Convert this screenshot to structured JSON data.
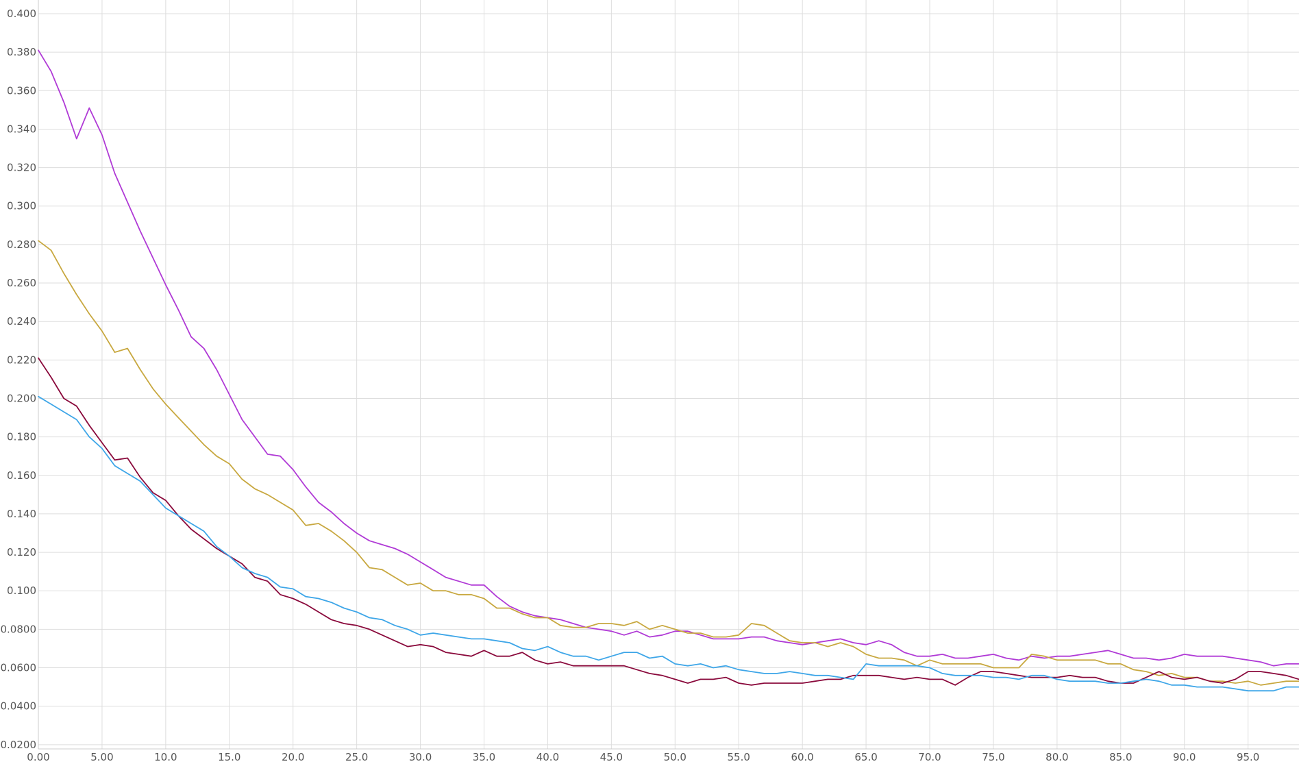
{
  "chart_data": {
    "type": "line",
    "title": "",
    "xlabel": "",
    "ylabel": "",
    "xlim": [
      0,
      99
    ],
    "ylim": [
      0.0178,
      0.4
    ],
    "grid": true,
    "legend": "none",
    "x_ticks": [
      0,
      5,
      10,
      15,
      20,
      25,
      30,
      35,
      40,
      45,
      50,
      55,
      60,
      65,
      70,
      75,
      80,
      85,
      90,
      95
    ],
    "x_tick_labels": [
      "0.00",
      "5.00",
      "10.0",
      "15.0",
      "20.0",
      "25.0",
      "30.0",
      "35.0",
      "40.0",
      "45.0",
      "50.0",
      "55.0",
      "60.0",
      "65.0",
      "70.0",
      "75.0",
      "80.0",
      "85.0",
      "90.0",
      "95.0"
    ],
    "y_ticks": [
      0.02,
      0.04,
      0.06,
      0.08,
      0.1,
      0.12,
      0.14,
      0.16,
      0.18,
      0.2,
      0.22,
      0.24,
      0.26,
      0.28,
      0.3,
      0.32,
      0.34,
      0.36,
      0.38,
      0.4
    ],
    "y_tick_labels": [
      "0.0200",
      "0.0400",
      "0.0600",
      "0.0800",
      "0.100",
      "0.120",
      "0.140",
      "0.160",
      "0.180",
      "0.200",
      "0.220",
      "0.240",
      "0.260",
      "0.280",
      "0.300",
      "0.320",
      "0.340",
      "0.360",
      "0.380",
      "0.400"
    ],
    "x": [
      0,
      1,
      2,
      3,
      4,
      5,
      6,
      7,
      8,
      9,
      10,
      11,
      12,
      13,
      14,
      15,
      16,
      17,
      18,
      19,
      20,
      21,
      22,
      23,
      24,
      25,
      26,
      27,
      28,
      29,
      30,
      31,
      32,
      33,
      34,
      35,
      36,
      37,
      38,
      39,
      40,
      41,
      42,
      43,
      44,
      45,
      46,
      47,
      48,
      49,
      50,
      51,
      52,
      53,
      54,
      55,
      56,
      57,
      58,
      59,
      60,
      61,
      62,
      63,
      64,
      65,
      66,
      67,
      68,
      69,
      70,
      71,
      72,
      73,
      74,
      75,
      76,
      77,
      78,
      79,
      80,
      81,
      82,
      83,
      84,
      85,
      86,
      87,
      88,
      89,
      90,
      91,
      92,
      93,
      94,
      95,
      96,
      97,
      98,
      99
    ],
    "series": [
      {
        "color": "#b03ad6",
        "values": [
          0.381,
          0.37,
          0.354,
          0.335,
          0.351,
          0.337,
          0.317,
          0.302,
          0.287,
          0.273,
          0.259,
          0.246,
          0.232,
          0.226,
          0.215,
          0.202,
          0.189,
          0.18,
          0.171,
          0.17,
          0.163,
          0.154,
          0.146,
          0.141,
          0.135,
          0.13,
          0.126,
          0.124,
          0.122,
          0.119,
          0.115,
          0.111,
          0.107,
          0.105,
          0.103,
          0.103,
          0.097,
          0.092,
          0.089,
          0.087,
          0.086,
          0.085,
          0.083,
          0.081,
          0.08,
          0.079,
          0.077,
          0.079,
          0.076,
          0.077,
          0.079,
          0.079,
          0.077,
          0.075,
          0.075,
          0.075,
          0.076,
          0.076,
          0.074,
          0.073,
          0.072,
          0.073,
          0.074,
          0.075,
          0.073,
          0.072,
          0.074,
          0.072,
          0.068,
          0.066,
          0.066,
          0.067,
          0.065,
          0.065,
          0.066,
          0.067,
          0.065,
          0.064,
          0.066,
          0.065,
          0.066,
          0.066,
          0.067,
          0.068,
          0.069,
          0.067,
          0.065,
          0.065,
          0.064,
          0.065,
          0.067,
          0.066,
          0.066,
          0.066,
          0.065,
          0.064,
          0.063,
          0.061,
          0.062,
          0.062
        ]
      },
      {
        "color": "#c8a840",
        "values": [
          0.282,
          0.277,
          0.265,
          0.254,
          0.244,
          0.235,
          0.224,
          0.226,
          0.215,
          0.205,
          0.197,
          0.19,
          0.183,
          0.176,
          0.17,
          0.166,
          0.158,
          0.153,
          0.15,
          0.146,
          0.142,
          0.134,
          0.135,
          0.131,
          0.126,
          0.12,
          0.112,
          0.111,
          0.107,
          0.103,
          0.104,
          0.1,
          0.1,
          0.098,
          0.098,
          0.096,
          0.091,
          0.091,
          0.088,
          0.086,
          0.086,
          0.082,
          0.081,
          0.081,
          0.083,
          0.083,
          0.082,
          0.084,
          0.08,
          0.082,
          0.08,
          0.078,
          0.078,
          0.076,
          0.076,
          0.077,
          0.083,
          0.082,
          0.078,
          0.074,
          0.073,
          0.073,
          0.071,
          0.073,
          0.071,
          0.067,
          0.065,
          0.065,
          0.064,
          0.061,
          0.064,
          0.062,
          0.062,
          0.062,
          0.062,
          0.06,
          0.06,
          0.06,
          0.067,
          0.066,
          0.064,
          0.064,
          0.064,
          0.064,
          0.062,
          0.062,
          0.059,
          0.058,
          0.056,
          0.057,
          0.055,
          0.055,
          0.053,
          0.053,
          0.052,
          0.053,
          0.051,
          0.052,
          0.053,
          0.053
        ]
      },
      {
        "color": "#8a0a3c",
        "values": [
          0.221,
          0.211,
          0.2,
          0.196,
          0.186,
          0.177,
          0.168,
          0.169,
          0.159,
          0.151,
          0.147,
          0.139,
          0.132,
          0.127,
          0.122,
          0.118,
          0.114,
          0.107,
          0.105,
          0.098,
          0.096,
          0.093,
          0.089,
          0.085,
          0.083,
          0.082,
          0.08,
          0.077,
          0.074,
          0.071,
          0.072,
          0.071,
          0.068,
          0.067,
          0.066,
          0.069,
          0.066,
          0.066,
          0.068,
          0.064,
          0.062,
          0.063,
          0.061,
          0.061,
          0.061,
          0.061,
          0.061,
          0.059,
          0.057,
          0.056,
          0.054,
          0.052,
          0.054,
          0.054,
          0.055,
          0.052,
          0.051,
          0.052,
          0.052,
          0.052,
          0.052,
          0.053,
          0.054,
          0.054,
          0.056,
          0.056,
          0.056,
          0.055,
          0.054,
          0.055,
          0.054,
          0.054,
          0.051,
          0.055,
          0.058,
          0.058,
          0.057,
          0.056,
          0.055,
          0.055,
          0.055,
          0.056,
          0.055,
          0.055,
          0.053,
          0.052,
          0.052,
          0.055,
          0.058,
          0.055,
          0.054,
          0.055,
          0.053,
          0.052,
          0.054,
          0.058,
          0.058,
          0.057,
          0.056,
          0.054
        ]
      },
      {
        "color": "#3ea6e8",
        "values": [
          0.201,
          0.197,
          0.193,
          0.189,
          0.18,
          0.174,
          0.165,
          0.161,
          0.157,
          0.15,
          0.143,
          0.139,
          0.135,
          0.131,
          0.123,
          0.118,
          0.112,
          0.109,
          0.107,
          0.102,
          0.101,
          0.097,
          0.096,
          0.094,
          0.091,
          0.089,
          0.086,
          0.085,
          0.082,
          0.08,
          0.077,
          0.078,
          0.077,
          0.076,
          0.075,
          0.075,
          0.074,
          0.073,
          0.07,
          0.069,
          0.071,
          0.068,
          0.066,
          0.066,
          0.064,
          0.066,
          0.068,
          0.068,
          0.065,
          0.066,
          0.062,
          0.061,
          0.062,
          0.06,
          0.061,
          0.059,
          0.058,
          0.057,
          0.057,
          0.058,
          0.057,
          0.056,
          0.056,
          0.055,
          0.054,
          0.062,
          0.061,
          0.061,
          0.061,
          0.061,
          0.06,
          0.057,
          0.056,
          0.056,
          0.056,
          0.055,
          0.055,
          0.054,
          0.056,
          0.056,
          0.054,
          0.053,
          0.053,
          0.053,
          0.052,
          0.052,
          0.053,
          0.054,
          0.053,
          0.051,
          0.051,
          0.05,
          0.05,
          0.05,
          0.049,
          0.048,
          0.048,
          0.048,
          0.05,
          0.05
        ]
      }
    ]
  }
}
